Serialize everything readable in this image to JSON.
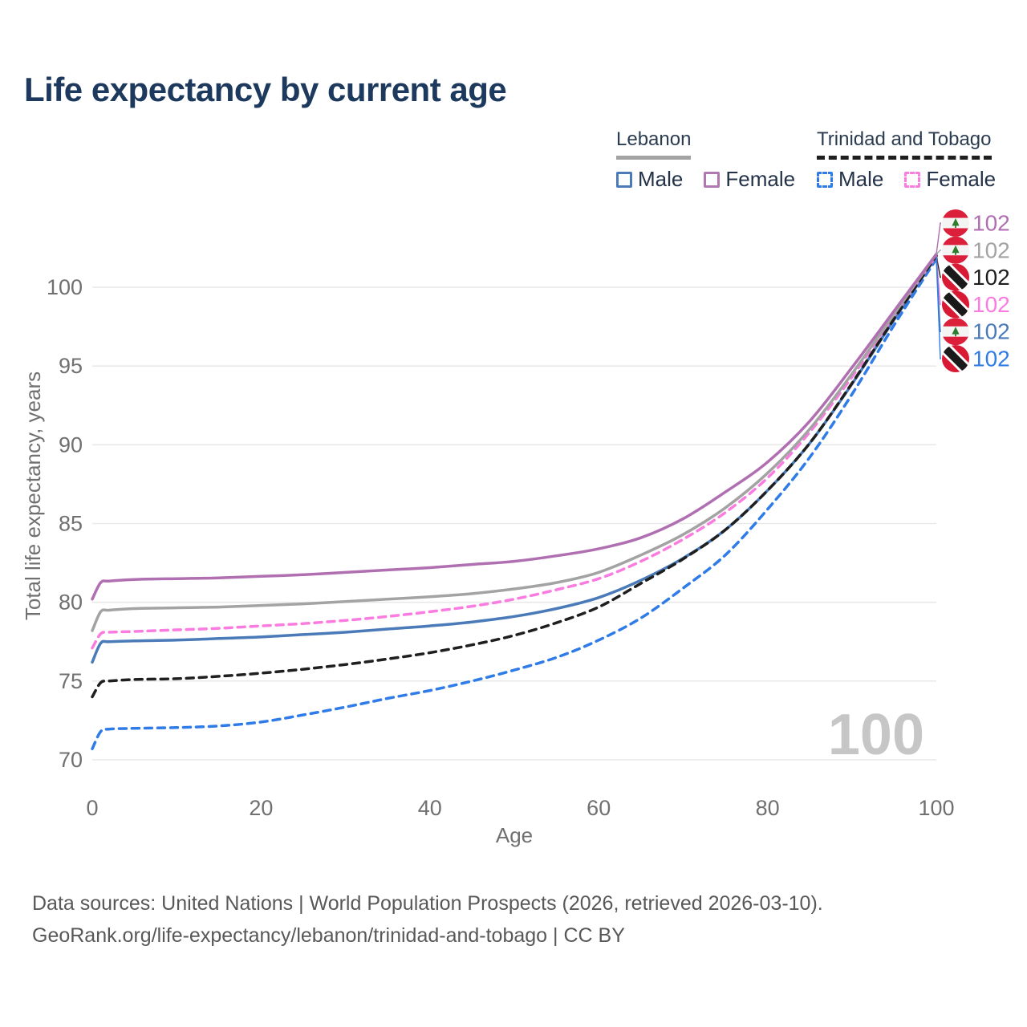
{
  "page": {
    "title": "Life expectancy by current age"
  },
  "legend": {
    "groups": [
      {
        "label": "Lebanon",
        "line_style": "solid",
        "underline_color": "#a3a3a3",
        "items": [
          {
            "label": "Male",
            "color": "#4a7ab8",
            "dashed": false
          },
          {
            "label": "Female",
            "color": "#b077b3",
            "dashed": false
          }
        ]
      },
      {
        "label": "Trinidad and Tobago",
        "line_style": "dashed",
        "underline_color": "#1f1f1f",
        "items": [
          {
            "label": "Male",
            "color": "#2f7ce8",
            "dashed": true
          },
          {
            "label": "Female",
            "color": "#fb7ce0",
            "dashed": true
          }
        ]
      }
    ]
  },
  "chart_data": {
    "type": "line",
    "title": "Life expectancy by current age",
    "xlabel": "Age",
    "ylabel": "Total life expectancy, years",
    "xlim": [
      0,
      100
    ],
    "ylim": [
      70,
      102.5
    ],
    "x_ticks": [
      0,
      20,
      40,
      60,
      80,
      100
    ],
    "y_ticks": [
      70,
      75,
      80,
      85,
      90,
      95,
      100
    ],
    "grid": "horizontal",
    "legend_position": "top-right",
    "watermark": "100",
    "series": [
      {
        "id": "lebanon-female",
        "name": "Lebanon Female",
        "country": "Lebanon",
        "sex": "Female",
        "color": "#b06fb1",
        "dashed": false,
        "flag": "lb",
        "end_label": "102",
        "points": [
          [
            0,
            80.2
          ],
          [
            1,
            81.25
          ],
          [
            2,
            81.35
          ],
          [
            5,
            81.45
          ],
          [
            10,
            81.5
          ],
          [
            15,
            81.55
          ],
          [
            20,
            81.65
          ],
          [
            25,
            81.75
          ],
          [
            30,
            81.9
          ],
          [
            35,
            82.05
          ],
          [
            40,
            82.2
          ],
          [
            45,
            82.4
          ],
          [
            50,
            82.6
          ],
          [
            55,
            82.95
          ],
          [
            60,
            83.4
          ],
          [
            65,
            84.1
          ],
          [
            70,
            85.3
          ],
          [
            75,
            87.0
          ],
          [
            80,
            88.9
          ],
          [
            85,
            91.5
          ],
          [
            90,
            94.9
          ],
          [
            95,
            98.5
          ],
          [
            100,
            102.1
          ]
        ]
      },
      {
        "id": "lebanon-total",
        "name": "Lebanon (both sexes)",
        "country": "Lebanon",
        "sex": "Both",
        "color": "#a3a3a3",
        "dashed": false,
        "flag": "lb",
        "end_label": "102",
        "points": [
          [
            0,
            78.2
          ],
          [
            1,
            79.4
          ],
          [
            2,
            79.5
          ],
          [
            5,
            79.6
          ],
          [
            10,
            79.65
          ],
          [
            15,
            79.7
          ],
          [
            20,
            79.8
          ],
          [
            25,
            79.9
          ],
          [
            30,
            80.05
          ],
          [
            35,
            80.2
          ],
          [
            40,
            80.35
          ],
          [
            45,
            80.55
          ],
          [
            50,
            80.85
          ],
          [
            55,
            81.25
          ],
          [
            60,
            81.9
          ],
          [
            65,
            83.0
          ],
          [
            70,
            84.3
          ],
          [
            75,
            86.0
          ],
          [
            80,
            88.2
          ],
          [
            85,
            91.0
          ],
          [
            90,
            94.5
          ],
          [
            95,
            98.3
          ],
          [
            100,
            102.1
          ]
        ]
      },
      {
        "id": "tt-total",
        "name": "Trinidad and Tobago (both sexes)",
        "country": "Trinidad and Tobago",
        "sex": "Both",
        "color": "#1f1f1f",
        "dashed": true,
        "flag": "tt",
        "end_label": "102",
        "points": [
          [
            0,
            74.0
          ],
          [
            1,
            74.9
          ],
          [
            2,
            75.0
          ],
          [
            5,
            75.1
          ],
          [
            10,
            75.15
          ],
          [
            15,
            75.3
          ],
          [
            20,
            75.5
          ],
          [
            25,
            75.75
          ],
          [
            30,
            76.05
          ],
          [
            35,
            76.4
          ],
          [
            40,
            76.8
          ],
          [
            45,
            77.3
          ],
          [
            50,
            77.9
          ],
          [
            55,
            78.7
          ],
          [
            60,
            79.7
          ],
          [
            65,
            81.2
          ],
          [
            70,
            82.75
          ],
          [
            75,
            84.6
          ],
          [
            80,
            87.1
          ],
          [
            85,
            90.1
          ],
          [
            90,
            93.9
          ],
          [
            95,
            98.0
          ],
          [
            100,
            102.0
          ]
        ]
      },
      {
        "id": "tt-female",
        "name": "Trinidad and Tobago Female",
        "country": "Trinidad and Tobago",
        "sex": "Female",
        "color": "#fb7ce0",
        "dashed": true,
        "flag": "tt",
        "end_label": "102",
        "points": [
          [
            0,
            77.1
          ],
          [
            1,
            78.0
          ],
          [
            2,
            78.1
          ],
          [
            5,
            78.15
          ],
          [
            10,
            78.25
          ],
          [
            15,
            78.35
          ],
          [
            20,
            78.5
          ],
          [
            25,
            78.65
          ],
          [
            30,
            78.85
          ],
          [
            35,
            79.1
          ],
          [
            40,
            79.4
          ],
          [
            45,
            79.75
          ],
          [
            50,
            80.2
          ],
          [
            55,
            80.8
          ],
          [
            60,
            81.5
          ],
          [
            65,
            82.6
          ],
          [
            70,
            84.0
          ],
          [
            75,
            85.7
          ],
          [
            80,
            87.9
          ],
          [
            85,
            90.8
          ],
          [
            90,
            94.3
          ],
          [
            95,
            98.2
          ],
          [
            100,
            102.0
          ]
        ]
      },
      {
        "id": "lebanon-male",
        "name": "Lebanon Male",
        "country": "Lebanon",
        "sex": "Male",
        "color": "#4a7ab8",
        "dashed": false,
        "flag": "lb",
        "end_label": "102",
        "points": [
          [
            0,
            76.2
          ],
          [
            1,
            77.4
          ],
          [
            2,
            77.5
          ],
          [
            5,
            77.55
          ],
          [
            10,
            77.6
          ],
          [
            15,
            77.7
          ],
          [
            20,
            77.8
          ],
          [
            25,
            77.95
          ],
          [
            30,
            78.1
          ],
          [
            35,
            78.3
          ],
          [
            40,
            78.5
          ],
          [
            45,
            78.75
          ],
          [
            50,
            79.1
          ],
          [
            55,
            79.6
          ],
          [
            60,
            80.3
          ],
          [
            65,
            81.4
          ],
          [
            70,
            82.8
          ],
          [
            75,
            84.6
          ],
          [
            80,
            87.1
          ],
          [
            85,
            90.1
          ],
          [
            90,
            93.85
          ],
          [
            95,
            97.95
          ],
          [
            100,
            101.95
          ]
        ]
      },
      {
        "id": "tt-male",
        "name": "Trinidad and Tobago Male",
        "country": "Trinidad and Tobago",
        "sex": "Male",
        "color": "#2f7ce8",
        "dashed": true,
        "flag": "tt",
        "end_label": "102",
        "points": [
          [
            0,
            70.7
          ],
          [
            1,
            71.8
          ],
          [
            2,
            71.95
          ],
          [
            5,
            72.0
          ],
          [
            10,
            72.05
          ],
          [
            15,
            72.15
          ],
          [
            20,
            72.4
          ],
          [
            25,
            72.85
          ],
          [
            30,
            73.35
          ],
          [
            35,
            73.9
          ],
          [
            40,
            74.4
          ],
          [
            45,
            75.0
          ],
          [
            50,
            75.7
          ],
          [
            55,
            76.5
          ],
          [
            60,
            77.6
          ],
          [
            65,
            79.0
          ],
          [
            70,
            80.9
          ],
          [
            75,
            83.0
          ],
          [
            80,
            85.9
          ],
          [
            85,
            89.2
          ],
          [
            90,
            93.2
          ],
          [
            95,
            97.6
          ],
          [
            100,
            101.8
          ]
        ]
      }
    ],
    "flag_colors": {
      "lebanon_red": "#dc1f3a",
      "lebanon_cedar_green": "#2d7d2d",
      "tt_red": "#d81a35",
      "tt_black": "#1a1a1a"
    },
    "axis_text_color": "#707070",
    "grid_color": "#e9e9e9",
    "watermark_color": "#c6c6c6"
  },
  "footer": {
    "line1": "Data sources: United Nations | World Population Prospects (2026, retrieved 2026-03-10).",
    "line2": "GeoRank.org/life-expectancy/lebanon/trinidad-and-tobago | CC BY"
  }
}
